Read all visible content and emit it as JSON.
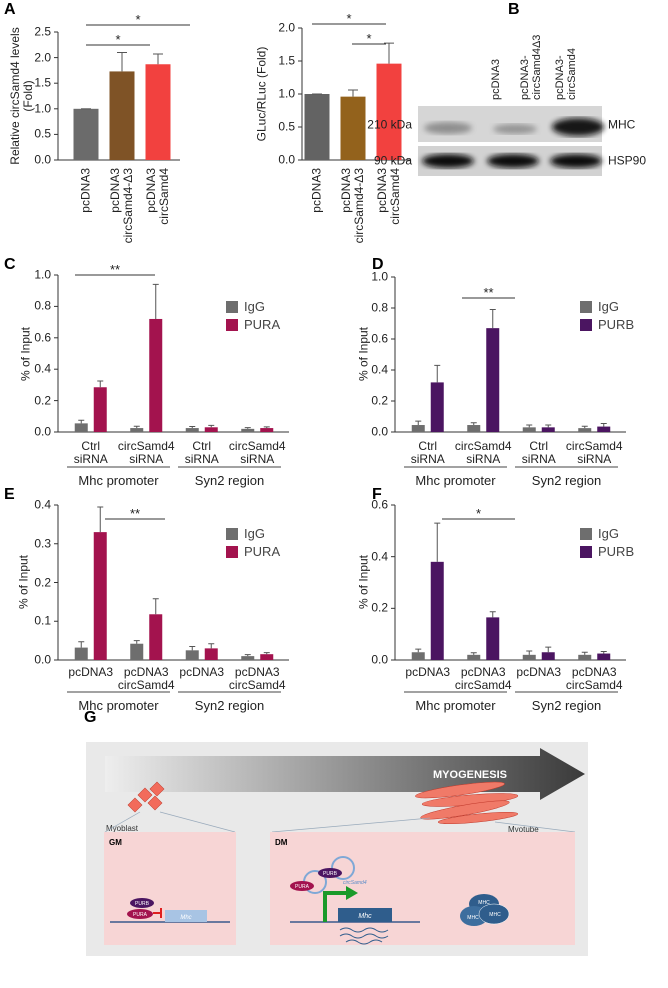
{
  "chart_data": [
    {
      "type": "bar",
      "label": "A",
      "ylabel": "Relative circSamd4 levels\n(Fold)",
      "categories": [
        "pcDNA3",
        "pcDNA3\ncircSamd4-Δ3",
        "pcDNA3\ncircSamd4"
      ],
      "values": [
        1.0,
        1.73,
        1.87
      ],
      "errors": [
        0,
        0.37,
        0.2
      ],
      "colors": [
        "#6b6b6b",
        "#7f5326",
        "#f2413f"
      ],
      "ylim": [
        0,
        2.5
      ],
      "yticks": [
        {
          "value": 0,
          "label": "0.0"
        },
        0.5,
        {
          "value": 1,
          "label": "1.0"
        },
        1.5,
        {
          "value": 2,
          "label": "2.0"
        },
        2.5
      ],
      "annotations": [
        "*",
        "*"
      ]
    },
    {
      "type": "bar",
      "ylabel": "GLuc/RLuc (Fold)",
      "categories": [
        "pcDNA3",
        "pcDNA3\ncircSamd4-Δ3",
        "pcDNA3\ncircSamd4"
      ],
      "values": [
        1.0,
        0.96,
        1.46
      ],
      "errors": [
        0,
        0.1,
        0.31
      ],
      "colors": [
        "#636363",
        "#93621c",
        "#f2413f"
      ],
      "ylim": [
        0,
        2
      ],
      "yticks": [
        {
          "value": 0,
          "label": "0.0"
        },
        0.5,
        {
          "value": 1,
          "label": "1.0"
        },
        1.5,
        {
          "value": 2,
          "label": "2.0"
        }
      ],
      "annotations": [
        "*",
        "*"
      ]
    },
    {
      "type": "grouped-bar",
      "label": "C",
      "ylabel": "% of Input",
      "categories": [
        "Ctrl\nsiRNA",
        "circSamd4\nsiRNA",
        "Ctrl\nsiRNA",
        "circSamd4\nsiRNA"
      ],
      "groups": [
        "Mhc promoter",
        "Syn2 region"
      ],
      "series": [
        {
          "name": "IgG",
          "color": "#6e6e6e",
          "values": [
            0.055,
            0.025,
            0.025,
            0.02
          ],
          "errors": [
            0.02,
            0.012,
            0.01,
            0.008
          ]
        },
        {
          "name": "PURA",
          "color": "#a3134e",
          "values": [
            0.285,
            0.72,
            0.03,
            0.025
          ],
          "errors": [
            0.04,
            0.22,
            0.012,
            0.008
          ]
        }
      ],
      "ylim": [
        0,
        1
      ],
      "yticks": [
        {
          "value": 0,
          "label": "0.0"
        },
        0.2,
        0.4,
        0.6,
        0.8,
        {
          "value": 1,
          "label": "1.0"
        }
      ],
      "annotations": [
        "**"
      ]
    },
    {
      "type": "grouped-bar",
      "label": "D",
      "ylabel": "% of Input",
      "categories": [
        "Ctrl\nsiRNA",
        "circSamd4\nsiRNA",
        "Ctrl\nsiRNA",
        "circSamd4\nsiRNA"
      ],
      "groups": [
        "Mhc promoter",
        "Syn2 region"
      ],
      "series": [
        {
          "name": "IgG",
          "color": "#6e6e6e",
          "values": [
            0.045,
            0.045,
            0.03,
            0.025
          ],
          "errors": [
            0.025,
            0.015,
            0.015,
            0.012
          ]
        },
        {
          "name": "PURB",
          "color": "#4b1561",
          "values": [
            0.32,
            0.67,
            0.03,
            0.035
          ],
          "errors": [
            0.11,
            0.12,
            0.015,
            0.02
          ]
        }
      ],
      "ylim": [
        0,
        1
      ],
      "yticks": [
        {
          "value": 0,
          "label": "0.0"
        },
        0.2,
        0.4,
        0.6,
        0.8,
        {
          "value": 1,
          "label": "1.0"
        }
      ],
      "annotations": [
        "**"
      ]
    },
    {
      "type": "grouped-bar",
      "label": "E",
      "ylabel": "% of Input",
      "categories": [
        "pcDNA3",
        "pcDNA3\ncircSamd4",
        "pcDNA3",
        "pcDNA3\ncircSamd4"
      ],
      "groups": [
        "Mhc promoter",
        "Syn2 region"
      ],
      "series": [
        {
          "name": "IgG",
          "color": "#6e6e6e",
          "values": [
            0.032,
            0.042,
            0.025,
            0.01
          ],
          "errors": [
            0.015,
            0.008,
            0.01,
            0.004
          ]
        },
        {
          "name": "PURA",
          "color": "#a3134e",
          "values": [
            0.33,
            0.118,
            0.03,
            0.015
          ],
          "errors": [
            0.065,
            0.04,
            0.012,
            0.004
          ]
        }
      ],
      "ylim": [
        0,
        0.4
      ],
      "yticks": [
        {
          "value": 0,
          "label": "0.0"
        },
        0.1,
        0.2,
        0.3,
        0.4
      ],
      "annotations": [
        "**"
      ]
    },
    {
      "type": "grouped-bar",
      "label": "F",
      "ylabel": "% of Input",
      "categories": [
        "pcDNA3",
        "pcDNA3\ncircSamd4",
        "pcDNA3",
        "pcDNA3\ncircSamd4"
      ],
      "groups": [
        "Mhc promoter",
        "Syn2 region"
      ],
      "series": [
        {
          "name": "IgG",
          "color": "#6e6e6e",
          "values": [
            0.03,
            0.02,
            0.02,
            0.02
          ],
          "errors": [
            0.012,
            0.008,
            0.015,
            0.01
          ]
        },
        {
          "name": "PURB",
          "color": "#4b1561",
          "values": [
            0.38,
            0.165,
            0.03,
            0.025
          ],
          "errors": [
            0.15,
            0.022,
            0.02,
            0.008
          ]
        }
      ],
      "ylim": [
        0,
        0.6
      ],
      "yticks": [
        {
          "value": 0,
          "label": "0.0"
        },
        0.2,
        0.4,
        0.6
      ],
      "annotations": [
        "*"
      ]
    }
  ],
  "blot": {
    "label": "B",
    "lanes": [
      "pcDNA3",
      "pcDNA3-\ncircSamd4Δ3",
      "pcDNA3-\ncircSamd4"
    ],
    "rows": [
      {
        "size": "210 kDa",
        "protein": "MHC"
      },
      {
        "size": "90 kDa",
        "protein": "HSP90"
      }
    ]
  },
  "diagram": {
    "label": "G",
    "title": "MYOGENESIS",
    "left_cell": "Myoblast",
    "right_cell": "Myotube",
    "gm": {
      "title": "GM",
      "purb": "PURB",
      "pura": "PURA",
      "gene": "Mhc"
    },
    "dm": {
      "title": "DM",
      "pura": "PURA",
      "purb": "PURB",
      "rna": "circSamd4",
      "gene": "Mhc",
      "proteins": [
        "MHC",
        "MHC",
        "MHC"
      ]
    }
  }
}
